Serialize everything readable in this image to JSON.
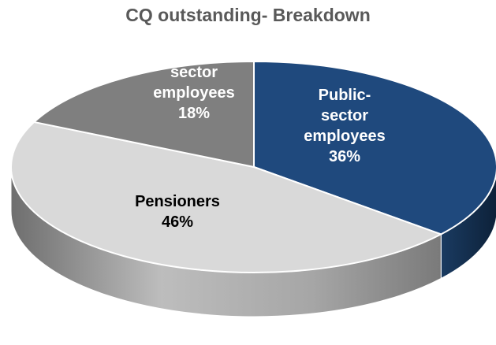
{
  "chart_data": {
    "type": "pie",
    "title": "CQ outstanding- Breakdown",
    "slices": [
      {
        "label_lines": [
          "Public-",
          "sector",
          "employees"
        ],
        "value": 36,
        "value_label": "36%",
        "color": "#1f497d",
        "side_color": "#14304f",
        "text_color": "#ffffff"
      },
      {
        "label_lines": [
          "Pensioners"
        ],
        "value": 46,
        "value_label": "46%",
        "color": "#d9d9d9",
        "side_color": "#8c8c8c",
        "text_color": "#000000"
      },
      {
        "label_lines": [
          "sector",
          "employees"
        ],
        "value": 18,
        "value_label": "18%",
        "color": "#7f7f7f",
        "side_color": "#595959",
        "text_color": "#ffffff"
      }
    ]
  }
}
